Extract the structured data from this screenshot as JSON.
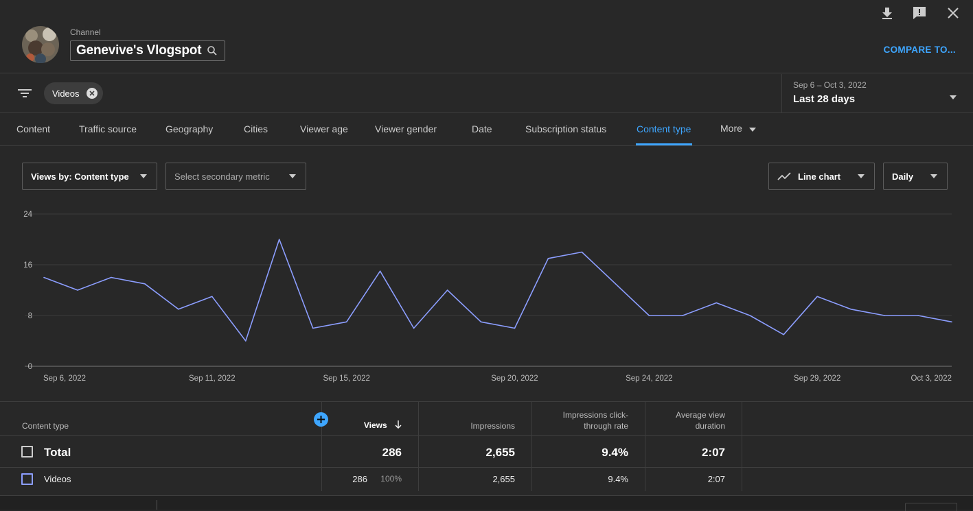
{
  "header": {
    "channel_label": "Channel",
    "channel_name": "Genevive's Vlogspot",
    "compare_label": "COMPARE TO..."
  },
  "filter": {
    "chip_label": "Videos",
    "date_range": "Sep 6 – Oct 3, 2022",
    "date_preset": "Last 28 days"
  },
  "tabs": [
    {
      "label": "Content"
    },
    {
      "label": "Traffic source"
    },
    {
      "label": "Geography"
    },
    {
      "label": "Cities"
    },
    {
      "label": "Viewer age"
    },
    {
      "label": "Viewer gender"
    },
    {
      "label": "Date"
    },
    {
      "label": "Subscription status"
    },
    {
      "label": "Content type",
      "active": true
    },
    {
      "label": "More"
    }
  ],
  "controls": {
    "primary_metric": "Views by: Content type",
    "secondary_metric_placeholder": "Select secondary metric",
    "chart_type": "Line chart",
    "granularity": "Daily"
  },
  "chart_data": {
    "type": "line",
    "x": [
      "Sep 6",
      "Sep 7",
      "Sep 8",
      "Sep 9",
      "Sep 10",
      "Sep 11",
      "Sep 12",
      "Sep 13",
      "Sep 14",
      "Sep 15",
      "Sep 16",
      "Sep 17",
      "Sep 18",
      "Sep 19",
      "Sep 20",
      "Sep 21",
      "Sep 22",
      "Sep 23",
      "Sep 24",
      "Sep 25",
      "Sep 26",
      "Sep 27",
      "Sep 28",
      "Sep 29",
      "Sep 30",
      "Oct 1",
      "Oct 2",
      "Oct 3"
    ],
    "series": [
      {
        "values": [
          14,
          12,
          14,
          13,
          9,
          11,
          4,
          20,
          6,
          7,
          15,
          6,
          12,
          7,
          6,
          17,
          18,
          13,
          8,
          8,
          10,
          8,
          5,
          11,
          9,
          8,
          8,
          7
        ]
      }
    ],
    "x_tick_labels": [
      "Sep 6, 2022",
      "Sep 11, 2022",
      "Sep 15, 2022",
      "Sep 20, 2022",
      "Sep 24, 2022",
      "Sep 29, 2022",
      "Oct 3, 2022"
    ],
    "x_tick_index": [
      0,
      5,
      9,
      14,
      18,
      23,
      27
    ],
    "y_ticks": [
      0,
      8,
      16,
      24
    ],
    "ylim": [
      0,
      24
    ],
    "grid": true,
    "color": "#8c9eff"
  },
  "table": {
    "headers": {
      "content_type": "Content type",
      "views": "Views",
      "impressions": "Impressions",
      "ctr_line1": "Impressions click-",
      "ctr_line2": "through rate",
      "avd_line1": "Average view",
      "avd_line2": "duration"
    },
    "total": {
      "label": "Total",
      "views": "286",
      "impressions": "2,655",
      "ctr": "9.4%",
      "avd": "2:07"
    },
    "rows": [
      {
        "label": "Videos",
        "views": "286",
        "views_pct": "100%",
        "impressions": "2,655",
        "ctr": "9.4%",
        "avd": "2:07",
        "color": "#8c9eff"
      }
    ]
  }
}
